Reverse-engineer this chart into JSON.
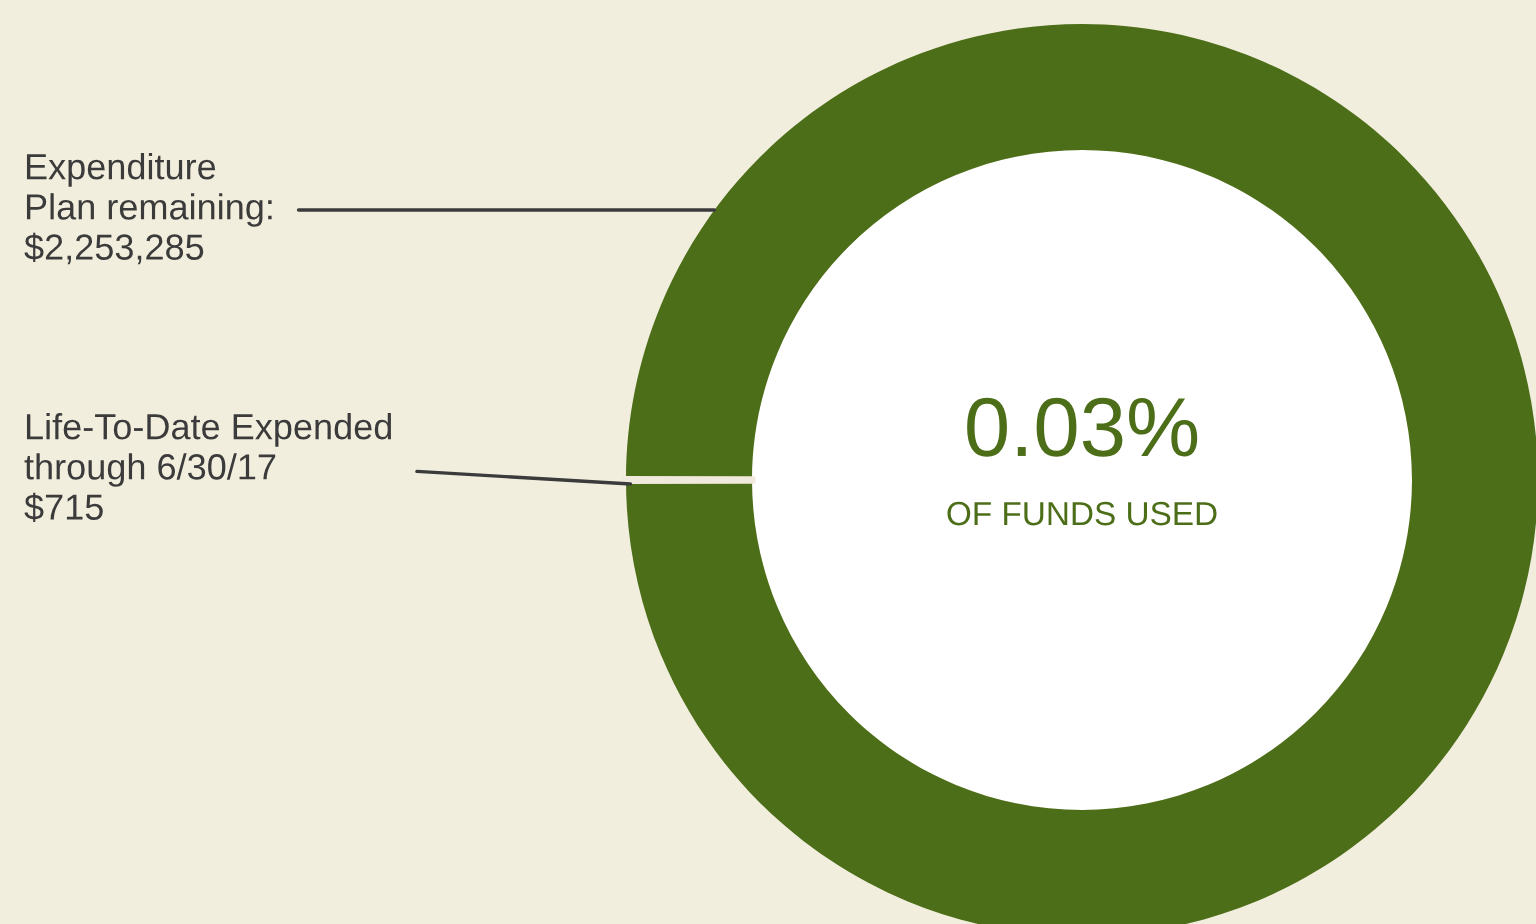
{
  "chart_data": {
    "type": "donut",
    "categories": [
      "Expenditure\nPlan remaining:\n$2,253,285",
      "Life-To-Date Expended\nthrough 6/30/17\n$715"
    ],
    "values": [
      2253285,
      715
    ],
    "colors": [
      "#4d6e19",
      "#efeadb"
    ],
    "annotations": [
      "0.03%",
      "OF FUNDS USED"
    ]
  }
}
